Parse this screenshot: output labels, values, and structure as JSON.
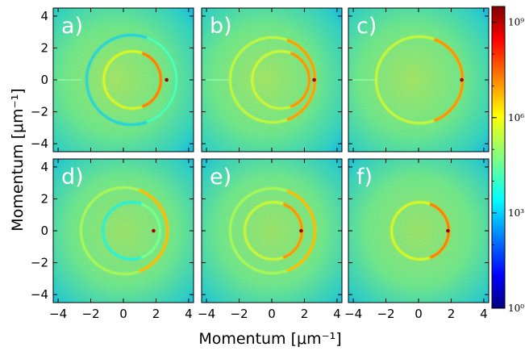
{
  "chart_data": {
    "type": "heatmap",
    "xlabel": "Momentum [μm⁻¹]",
    "ylabel": "Momentum [μm⁻¹]",
    "xlim": [
      -4.3,
      4.3
    ],
    "ylim": [
      -4.5,
      4.5
    ],
    "xticks": [
      "−4",
      "−2",
      "0",
      "2",
      "4"
    ],
    "yticks": [
      "4",
      "2",
      "0",
      "−2",
      "−4"
    ],
    "colorbar": {
      "scale": "log",
      "range": [
        0,
        9.5
      ],
      "ticks": [
        {
          "exp": 0,
          "label": "10⁰"
        },
        {
          "exp": 3,
          "label": "10³"
        },
        {
          "exp": 6,
          "label": "10⁶"
        },
        {
          "exp": 9,
          "label": "10⁹"
        }
      ]
    },
    "panels": [
      {
        "label": "a)",
        "rings": [
          {
            "cx": 0.55,
            "r": 1.75,
            "level": 7.2
          },
          {
            "cx": 0.5,
            "r": 2.75,
            "level": 4.4
          }
        ],
        "dot": {
          "x": 2.65,
          "y": 0
        },
        "streak": true
      },
      {
        "label": "b)",
        "rings": [
          {
            "cx": 0.55,
            "r": 1.75,
            "level": 7.0
          },
          {
            "cx": 0.05,
            "r": 2.6,
            "level": 6.9
          }
        ],
        "dot": {
          "x": 2.6,
          "y": 0
        },
        "streak": true
      },
      {
        "label": "c)",
        "rings": [
          {
            "cx": 0.05,
            "r": 2.65,
            "level": 7.0
          }
        ],
        "dot": {
          "x": 2.65,
          "y": 0
        },
        "streak": true
      },
      {
        "label": "d)",
        "rings": [
          {
            "cx": 0.05,
            "r": 2.65,
            "level": 6.6
          },
          {
            "cx": 0.5,
            "r": 1.75,
            "level": 4.8
          }
        ],
        "dot": {
          "x": 1.85,
          "y": 0
        },
        "streak": false
      },
      {
        "label": "e)",
        "rings": [
          {
            "cx": 0.05,
            "r": 2.6,
            "level": 6.6
          },
          {
            "cx": 0.1,
            "r": 1.75,
            "level": 7.0
          }
        ],
        "dot": {
          "x": 1.8,
          "y": 0
        },
        "streak": false
      },
      {
        "label": "f)",
        "rings": [
          {
            "cx": 0.1,
            "r": 1.75,
            "level": 7.2
          }
        ],
        "dot": {
          "x": 1.8,
          "y": 0
        },
        "streak": false
      }
    ]
  }
}
